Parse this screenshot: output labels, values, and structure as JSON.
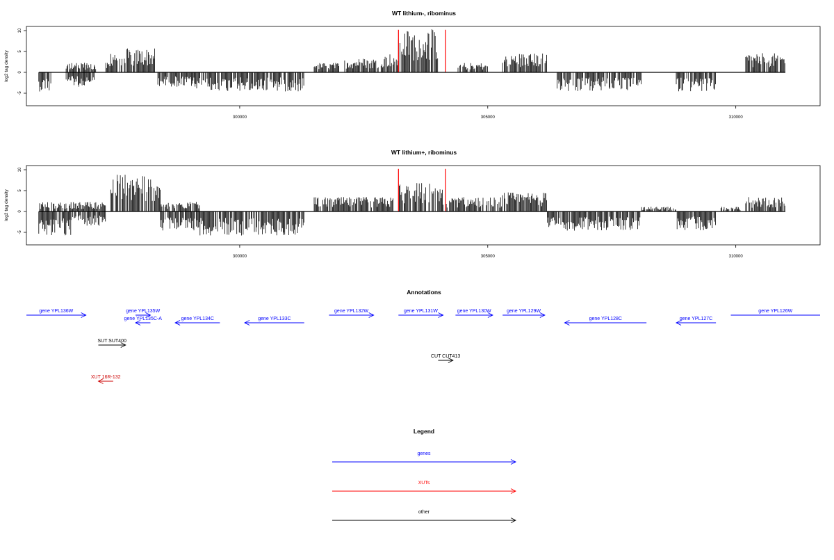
{
  "chart_data": [
    {
      "type": "bar",
      "title": "WT lithium-, ribominus",
      "ylabel": "log2 tag density",
      "xlim": [
        295700,
        311700
      ],
      "ylim": [
        -8,
        11
      ],
      "yticks": [
        10,
        5,
        0,
        -5
      ],
      "xticks": [
        300000,
        305000,
        310000
      ],
      "grid": false,
      "segments": [
        {
          "start": 295950,
          "end": 296200,
          "pos": 0,
          "neg": 4
        },
        {
          "start": 296500,
          "end": 297100,
          "pos": 2,
          "neg": 3
        },
        {
          "start": 297300,
          "end": 297400,
          "pos": 2,
          "neg": 0
        },
        {
          "start": 297400,
          "end": 298300,
          "pos": 5,
          "neg": 0
        },
        {
          "start": 298350,
          "end": 299100,
          "pos": 0,
          "neg": 3
        },
        {
          "start": 299100,
          "end": 301300,
          "pos": 0,
          "neg": 4
        },
        {
          "start": 301500,
          "end": 302000,
          "pos": 2,
          "neg": 0
        },
        {
          "start": 302100,
          "end": 302800,
          "pos": 3,
          "neg": 0
        },
        {
          "start": 302850,
          "end": 303200,
          "pos": 4,
          "neg": 0
        },
        {
          "start": 303200,
          "end": 304000,
          "pos": 9,
          "neg": 0
        },
        {
          "start": 304400,
          "end": 305000,
          "pos": 2,
          "neg": 0
        },
        {
          "start": 305300,
          "end": 306200,
          "pos": 4,
          "neg": 0
        },
        {
          "start": 306400,
          "end": 308100,
          "pos": 0,
          "neg": 4
        },
        {
          "start": 308800,
          "end": 309600,
          "pos": 0,
          "neg": 4
        },
        {
          "start": 310200,
          "end": 311000,
          "pos": 4,
          "neg": 0
        }
      ],
      "markers": [
        303200,
        304150
      ]
    },
    {
      "type": "bar",
      "title": "WT lithium+, ribominus",
      "ylabel": "log2 tag density",
      "xlim": [
        295700,
        311700
      ],
      "ylim": [
        -8,
        11
      ],
      "yticks": [
        10,
        5,
        0,
        -5
      ],
      "xticks": [
        300000,
        305000,
        310000
      ],
      "grid": false,
      "segments": [
        {
          "start": 295950,
          "end": 296600,
          "pos": 2,
          "neg": 5
        },
        {
          "start": 296600,
          "end": 297300,
          "pos": 2,
          "neg": 3
        },
        {
          "start": 297400,
          "end": 298400,
          "pos": 8,
          "neg": 0
        },
        {
          "start": 298400,
          "end": 299200,
          "pos": 2,
          "neg": 4
        },
        {
          "start": 299200,
          "end": 301300,
          "pos": 0,
          "neg": 5
        },
        {
          "start": 301500,
          "end": 302300,
          "pos": 3,
          "neg": 0
        },
        {
          "start": 302300,
          "end": 303100,
          "pos": 3,
          "neg": 0
        },
        {
          "start": 303200,
          "end": 304100,
          "pos": 6,
          "neg": 0
        },
        {
          "start": 304100,
          "end": 305300,
          "pos": 3,
          "neg": 0
        },
        {
          "start": 305300,
          "end": 306200,
          "pos": 4,
          "neg": 0
        },
        {
          "start": 306200,
          "end": 308100,
          "pos": 0,
          "neg": 4
        },
        {
          "start": 308100,
          "end": 308800,
          "pos": 1,
          "neg": 0
        },
        {
          "start": 308800,
          "end": 309600,
          "pos": 0,
          "neg": 4
        },
        {
          "start": 309700,
          "end": 310100,
          "pos": 1,
          "neg": 0
        },
        {
          "start": 310200,
          "end": 311000,
          "pos": 3,
          "neg": 0
        }
      ],
      "markers": [
        303200,
        304150
      ]
    }
  ],
  "annotations": {
    "title": "Annotations",
    "features": [
      {
        "label": "gene YPL136W",
        "start": 295700,
        "end": 296900,
        "strand": "+",
        "row": 0,
        "color": "#0000ff"
      },
      {
        "label": "gene YPL135W",
        "start": 297900,
        "end": 298200,
        "strand": "+",
        "row": 0,
        "color": "#0000ff"
      },
      {
        "label": "gene YPL135C-A",
        "start": 297900,
        "end": 298200,
        "strand": "-",
        "row": 1,
        "color": "#0000ff"
      },
      {
        "label": "gene YPL134C",
        "start": 298700,
        "end": 299600,
        "strand": "-",
        "row": 1,
        "color": "#0000ff"
      },
      {
        "label": "gene YPL133C",
        "start": 300100,
        "end": 301300,
        "strand": "-",
        "row": 1,
        "color": "#0000ff"
      },
      {
        "label": "gene YPL132W",
        "start": 301800,
        "end": 302700,
        "strand": "+",
        "row": 0,
        "color": "#0000ff"
      },
      {
        "label": "gene YPL131W",
        "start": 303200,
        "end": 304100,
        "strand": "+",
        "row": 0,
        "color": "#0000ff"
      },
      {
        "label": "gene YPL130W",
        "start": 304350,
        "end": 305100,
        "strand": "+",
        "row": 0,
        "color": "#0000ff"
      },
      {
        "label": "gene YPL129W",
        "start": 305300,
        "end": 306150,
        "strand": "+",
        "row": 0,
        "color": "#0000ff"
      },
      {
        "label": "gene YPL128C",
        "start": 306550,
        "end": 308200,
        "strand": "-",
        "row": 1,
        "color": "#0000ff"
      },
      {
        "label": "gene YPL127C",
        "start": 308800,
        "end": 309600,
        "strand": "-",
        "row": 1,
        "color": "#0000ff"
      },
      {
        "label": "gene YPL126W",
        "start": 309900,
        "end": 311700,
        "strand": "+",
        "row": 0,
        "color": "#0000ff"
      },
      {
        "label": "SUT SUT400",
        "start": 297150,
        "end": 297700,
        "strand": "+",
        "row": 2,
        "color": "#000000"
      },
      {
        "label": "CUT CUT413",
        "start": 304000,
        "end": 304300,
        "strand": "+",
        "row": 3,
        "color": "#000000"
      },
      {
        "label": "XUT 16R-132",
        "start": 297150,
        "end": 297450,
        "strand": "-",
        "row": 4,
        "color": "#cc0000"
      }
    ]
  },
  "legend": {
    "title": "Legend",
    "items": [
      {
        "label": "genes",
        "color": "#0000ff"
      },
      {
        "label": "XUTs",
        "color": "#ff0000"
      },
      {
        "label": "other",
        "color": "#000000"
      }
    ]
  }
}
